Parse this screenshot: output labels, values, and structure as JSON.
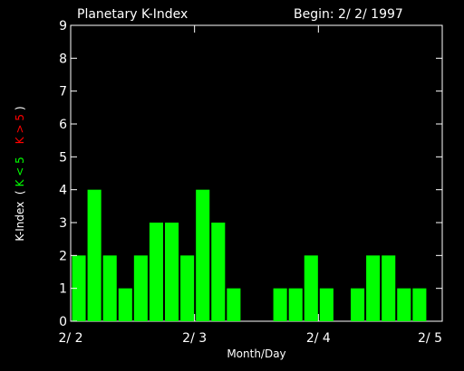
{
  "title_left": "Planetary K-Index",
  "title_right": "Begin: 2/ 2/ 1997",
  "colors": {
    "background": "#000000",
    "axis": "#ffffff",
    "bar_low": "#00ff00",
    "bar_high": "#ff0000"
  },
  "chart_data": {
    "type": "bar",
    "title": "Planetary K-Index",
    "xlabel": "Month/Day",
    "ylabel_parts": {
      "prefix": "K-Index  (",
      "low": "K < 5",
      "high": "K > 5",
      "suffix": ")"
    },
    "ylim": [
      0,
      9
    ],
    "y_ticks": [
      "0",
      "1",
      "2",
      "3",
      "4",
      "5",
      "6",
      "7",
      "8",
      "9"
    ],
    "x_ticks": [
      "2/ 2",
      "2/ 3",
      "2/ 4",
      "2/ 5"
    ],
    "values": [
      2,
      4,
      2,
      1,
      2,
      3,
      3,
      2,
      4,
      3,
      1,
      0,
      0,
      1,
      1,
      2,
      1,
      0,
      1,
      2,
      2,
      1,
      1,
      0
    ],
    "grid": false
  }
}
